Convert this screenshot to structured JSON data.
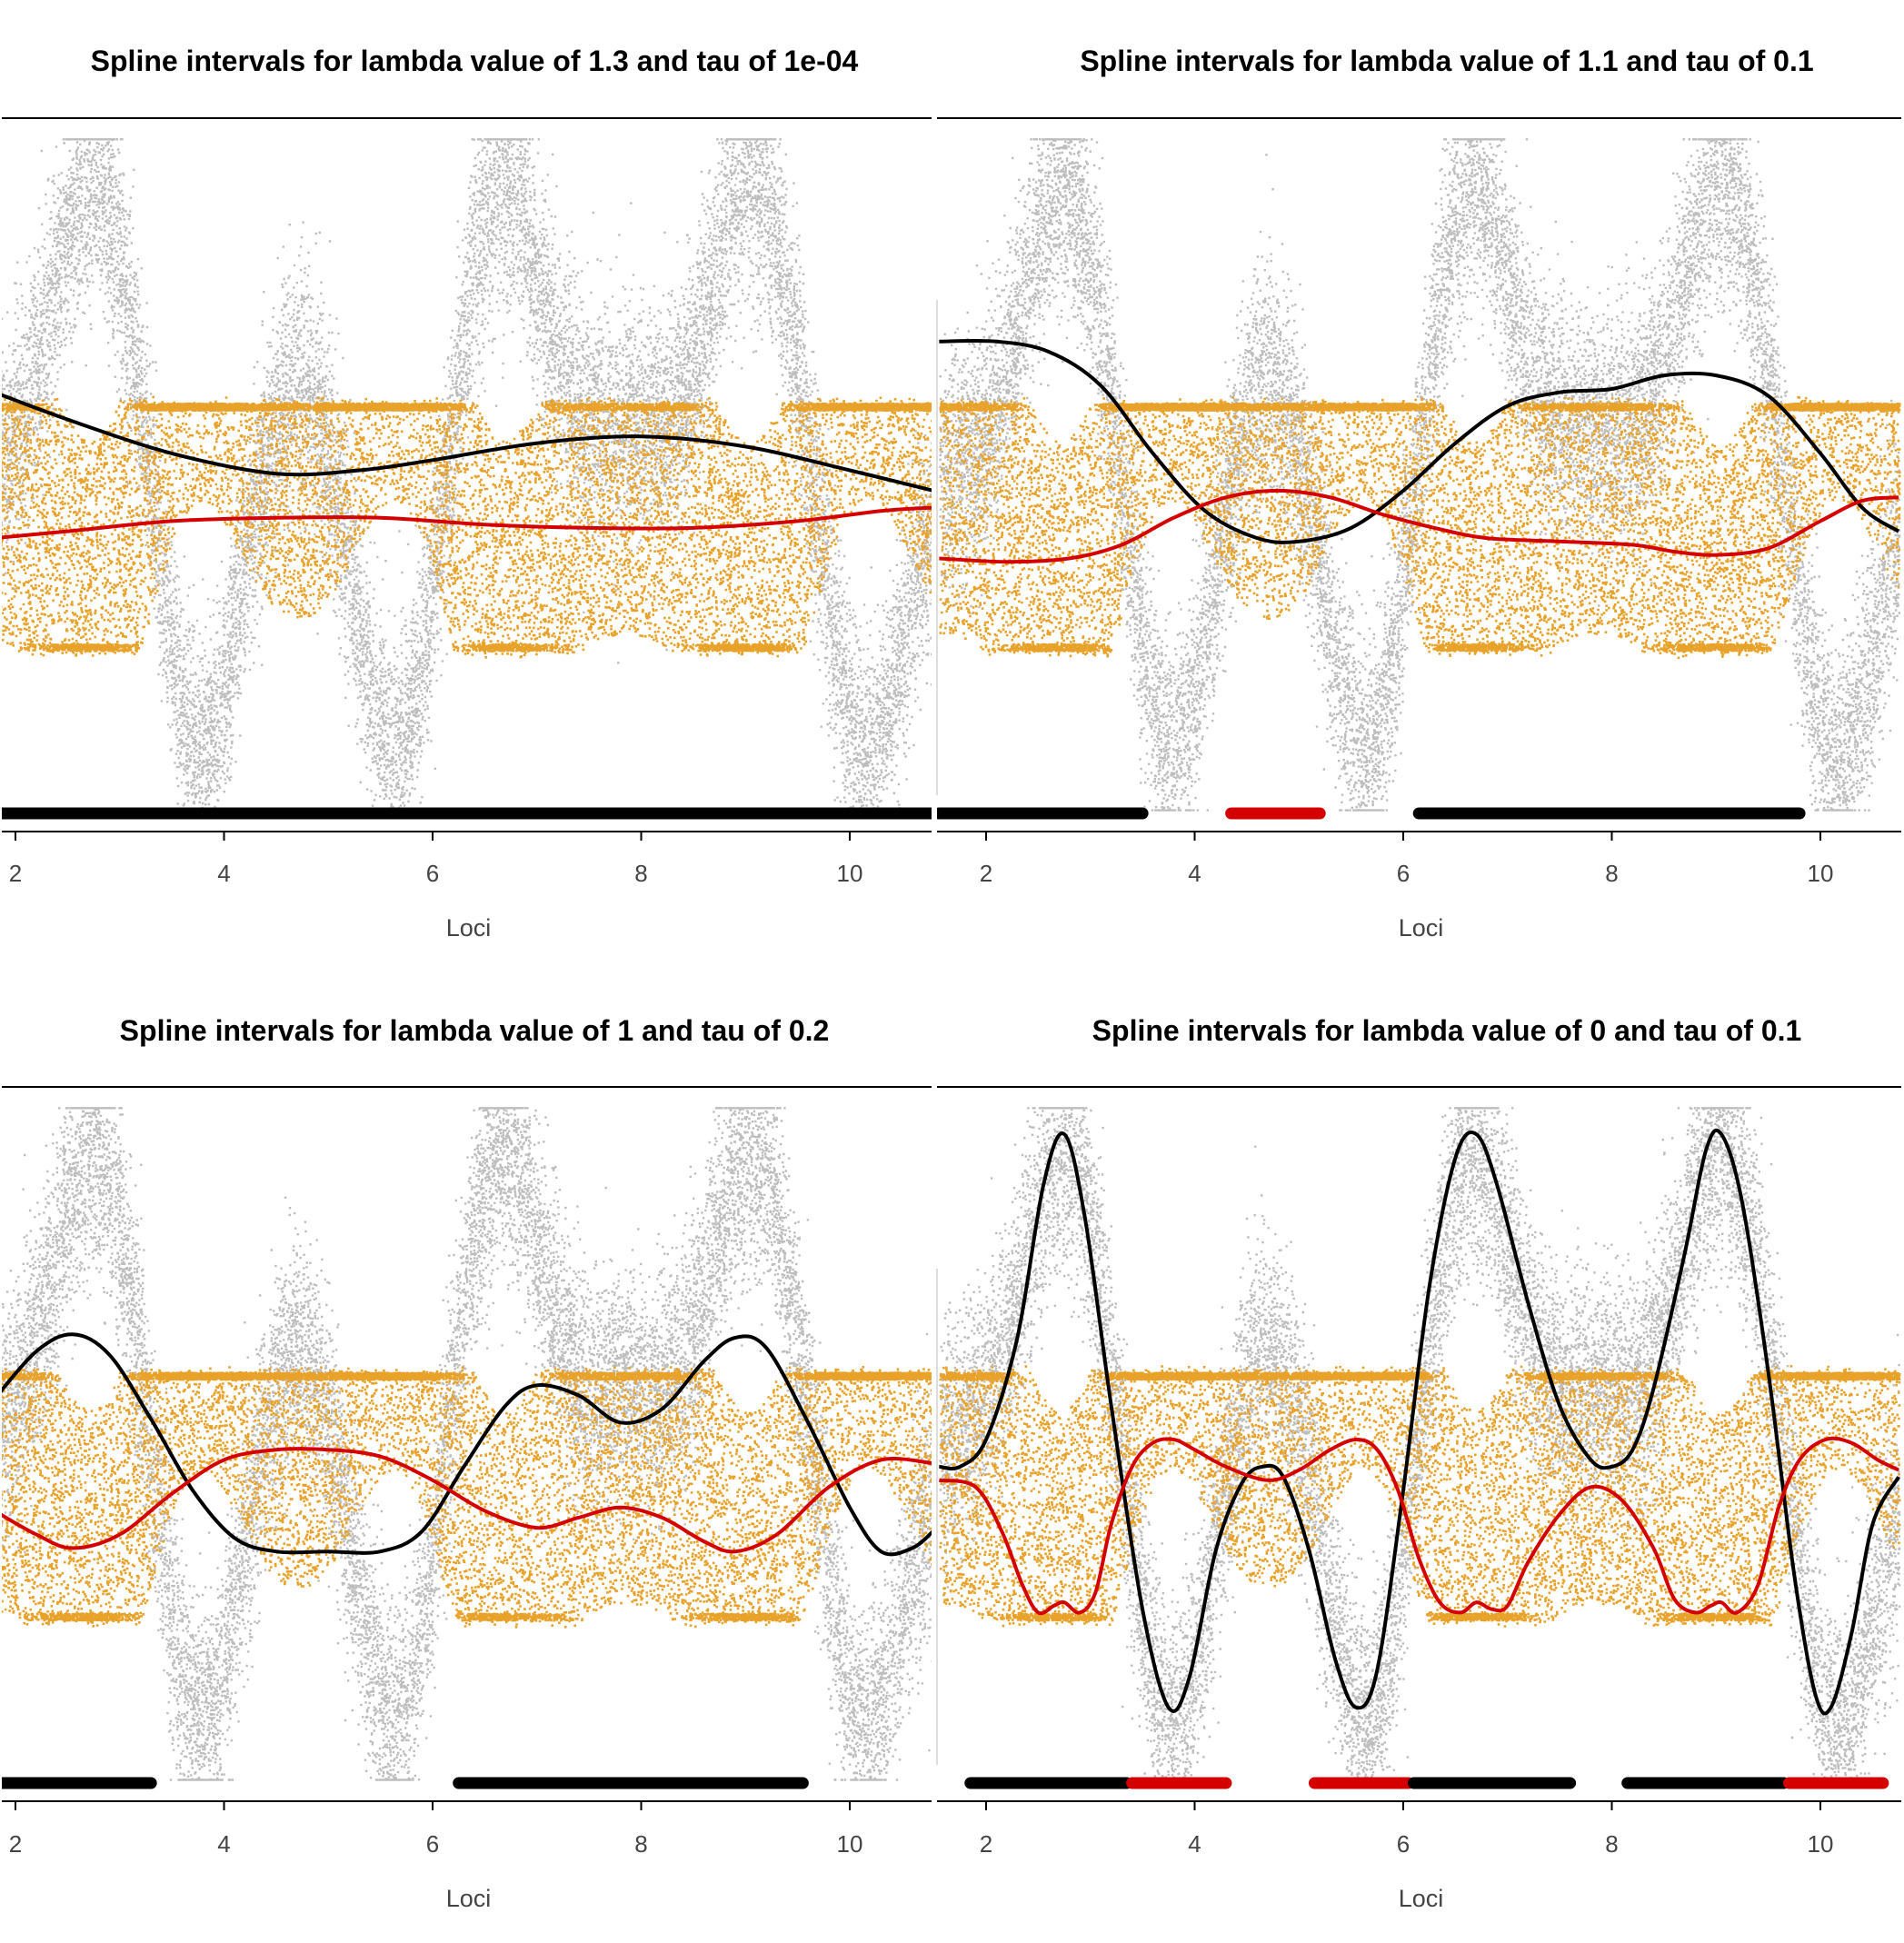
{
  "figure": {
    "layout": "2x2 grid of panels"
  },
  "colors": {
    "background_points": "#bdbdbd",
    "foreground_points": "#e8a22a",
    "upper_spline": "#000000",
    "lower_spline": "#d40000",
    "interval_black": "#000000",
    "interval_red": "#d40000"
  },
  "chart_data": [
    {
      "type": "scatter",
      "title": "Spline intervals for lambda value of 1.3 and tau of 1e-04",
      "xlabel": "Loci",
      "ylabel": "",
      "xlim": [
        1.8,
        10.8
      ],
      "ylim": [
        -1.15,
        1.15
      ],
      "x_ticks": [
        "2",
        "4",
        "6",
        "8",
        "10"
      ],
      "lines": [
        {
          "color": "black",
          "points": [
            [
              1.8,
              0.23
            ],
            [
              2.5,
              0.15
            ],
            [
              3.5,
              0.05
            ],
            [
              4.5,
              -0.01
            ],
            [
              5.3,
              0.0
            ],
            [
              6.0,
              0.03
            ],
            [
              7.0,
              0.08
            ],
            [
              8.0,
              0.1
            ],
            [
              9.0,
              0.07
            ],
            [
              10.0,
              0.0
            ],
            [
              10.8,
              -0.06
            ]
          ]
        },
        {
          "color": "red",
          "points": [
            [
              1.8,
              -0.2
            ],
            [
              2.5,
              -0.18
            ],
            [
              3.5,
              -0.15
            ],
            [
              4.5,
              -0.14
            ],
            [
              5.5,
              -0.14
            ],
            [
              6.5,
              -0.16
            ],
            [
              7.5,
              -0.17
            ],
            [
              8.5,
              -0.17
            ],
            [
              9.5,
              -0.15
            ],
            [
              10.3,
              -0.12
            ],
            [
              10.8,
              -0.11
            ]
          ]
        }
      ],
      "intervals": [
        {
          "color": "black",
          "from": 1.8,
          "to": 10.8
        }
      ]
    },
    {
      "type": "scatter",
      "title": "Spline intervals for lambda value of 1.1 and tau of 0.1",
      "xlabel": "Loci",
      "ylabel": "",
      "xlim": [
        1.55,
        10.75
      ],
      "ylim": [
        -1.15,
        1.15
      ],
      "x_ticks": [
        "2",
        "4",
        "6",
        "8",
        "10"
      ],
      "lines": [
        {
          "color": "black",
          "points": [
            [
              1.55,
              0.38
            ],
            [
              2.1,
              0.38
            ],
            [
              2.6,
              0.35
            ],
            [
              3.1,
              0.25
            ],
            [
              3.6,
              0.05
            ],
            [
              4.1,
              -0.12
            ],
            [
              4.6,
              -0.2
            ],
            [
              5.0,
              -0.21
            ],
            [
              5.5,
              -0.17
            ],
            [
              6.0,
              -0.06
            ],
            [
              6.5,
              0.08
            ],
            [
              7.0,
              0.19
            ],
            [
              7.5,
              0.23
            ],
            [
              8.0,
              0.24
            ],
            [
              8.5,
              0.28
            ],
            [
              9.0,
              0.28
            ],
            [
              9.5,
              0.22
            ],
            [
              10.0,
              0.05
            ],
            [
              10.4,
              -0.11
            ],
            [
              10.75,
              -0.18
            ]
          ]
        },
        {
          "color": "red",
          "points": [
            [
              1.55,
              -0.26
            ],
            [
              2.2,
              -0.27
            ],
            [
              2.8,
              -0.26
            ],
            [
              3.3,
              -0.22
            ],
            [
              3.8,
              -0.14
            ],
            [
              4.3,
              -0.08
            ],
            [
              4.8,
              -0.06
            ],
            [
              5.3,
              -0.08
            ],
            [
              5.8,
              -0.13
            ],
            [
              6.3,
              -0.17
            ],
            [
              6.8,
              -0.2
            ],
            [
              7.5,
              -0.21
            ],
            [
              8.2,
              -0.22
            ],
            [
              8.6,
              -0.24
            ],
            [
              9.0,
              -0.25
            ],
            [
              9.5,
              -0.23
            ],
            [
              10.0,
              -0.15
            ],
            [
              10.4,
              -0.09
            ],
            [
              10.75,
              -0.08
            ]
          ]
        }
      ],
      "intervals": [
        {
          "color": "black",
          "from": 1.55,
          "to": 3.5
        },
        {
          "color": "red",
          "from": 4.35,
          "to": 5.2
        },
        {
          "color": "black",
          "from": 6.15,
          "to": 9.8
        }
      ]
    },
    {
      "type": "scatter",
      "title": "Spline intervals for lambda value of 1 and tau of 0.2",
      "xlabel": "Loci",
      "ylabel": "",
      "xlim": [
        1.8,
        10.8
      ],
      "ylim": [
        -1.15,
        1.15
      ],
      "x_ticks": [
        "2",
        "4",
        "6",
        "8",
        "10"
      ],
      "lines": [
        {
          "color": "black",
          "points": [
            [
              1.8,
              0.12
            ],
            [
              2.2,
              0.26
            ],
            [
              2.55,
              0.31
            ],
            [
              2.9,
              0.25
            ],
            [
              3.3,
              0.06
            ],
            [
              3.7,
              -0.15
            ],
            [
              4.1,
              -0.29
            ],
            [
              4.5,
              -0.33
            ],
            [
              5.0,
              -0.33
            ],
            [
              5.5,
              -0.33
            ],
            [
              5.9,
              -0.27
            ],
            [
              6.3,
              -0.08
            ],
            [
              6.7,
              0.1
            ],
            [
              7.0,
              0.16
            ],
            [
              7.4,
              0.13
            ],
            [
              7.8,
              0.05
            ],
            [
              8.2,
              0.09
            ],
            [
              8.6,
              0.23
            ],
            [
              8.9,
              0.3
            ],
            [
              9.2,
              0.27
            ],
            [
              9.6,
              0.05
            ],
            [
              10.0,
              -0.2
            ],
            [
              10.3,
              -0.33
            ],
            [
              10.6,
              -0.32
            ],
            [
              10.8,
              -0.27
            ]
          ]
        },
        {
          "color": "red",
          "points": [
            [
              1.8,
              -0.21
            ],
            [
              2.2,
              -0.28
            ],
            [
              2.55,
              -0.32
            ],
            [
              3.0,
              -0.28
            ],
            [
              3.5,
              -0.16
            ],
            [
              4.0,
              -0.06
            ],
            [
              4.5,
              -0.03
            ],
            [
              5.0,
              -0.03
            ],
            [
              5.5,
              -0.05
            ],
            [
              6.0,
              -0.12
            ],
            [
              6.5,
              -0.21
            ],
            [
              7.0,
              -0.26
            ],
            [
              7.4,
              -0.23
            ],
            [
              7.8,
              -0.2
            ],
            [
              8.2,
              -0.23
            ],
            [
              8.6,
              -0.3
            ],
            [
              8.9,
              -0.33
            ],
            [
              9.3,
              -0.28
            ],
            [
              9.8,
              -0.14
            ],
            [
              10.3,
              -0.06
            ],
            [
              10.8,
              -0.07
            ]
          ]
        }
      ],
      "intervals": [
        {
          "color": "black",
          "from": 1.8,
          "to": 3.3
        },
        {
          "color": "black",
          "from": 6.25,
          "to": 9.55
        }
      ]
    },
    {
      "type": "scatter",
      "title": "Spline intervals for lambda value of 0 and tau of 0.1",
      "xlabel": "Loci",
      "ylabel": "",
      "xlim": [
        1.55,
        10.75
      ],
      "ylim": [
        -1.15,
        1.15
      ],
      "x_ticks": [
        "2",
        "4",
        "6",
        "8",
        "10"
      ],
      "lines": [
        {
          "color": "black",
          "points": [
            [
              1.55,
              -0.08
            ],
            [
              1.75,
              -0.08
            ],
            [
              2.0,
              -0.0
            ],
            [
              2.3,
              0.3
            ],
            [
              2.55,
              0.75
            ],
            [
              2.75,
              0.9
            ],
            [
              2.95,
              0.65
            ],
            [
              3.2,
              0.1
            ],
            [
              3.5,
              -0.5
            ],
            [
              3.75,
              -0.79
            ],
            [
              3.95,
              -0.7
            ],
            [
              4.2,
              -0.33
            ],
            [
              4.45,
              -0.13
            ],
            [
              4.65,
              -0.08
            ],
            [
              4.85,
              -0.11
            ],
            [
              5.1,
              -0.33
            ],
            [
              5.35,
              -0.65
            ],
            [
              5.55,
              -0.79
            ],
            [
              5.75,
              -0.68
            ],
            [
              6.0,
              -0.15
            ],
            [
              6.25,
              0.45
            ],
            [
              6.5,
              0.83
            ],
            [
              6.7,
              0.9
            ],
            [
              6.9,
              0.75
            ],
            [
              7.2,
              0.4
            ],
            [
              7.5,
              0.1
            ],
            [
              7.8,
              -0.06
            ],
            [
              8.0,
              -0.08
            ],
            [
              8.2,
              -0.03
            ],
            [
              8.4,
              0.15
            ],
            [
              8.7,
              0.55
            ],
            [
              8.9,
              0.85
            ],
            [
              9.05,
              0.9
            ],
            [
              9.25,
              0.7
            ],
            [
              9.5,
              0.2
            ],
            [
              9.75,
              -0.4
            ],
            [
              9.95,
              -0.75
            ],
            [
              10.1,
              -0.79
            ],
            [
              10.3,
              -0.57
            ],
            [
              10.5,
              -0.25
            ],
            [
              10.75,
              -0.11
            ]
          ]
        },
        {
          "color": "red",
          "points": [
            [
              1.55,
              -0.12
            ],
            [
              1.9,
              -0.14
            ],
            [
              2.15,
              -0.27
            ],
            [
              2.35,
              -0.43
            ],
            [
              2.5,
              -0.51
            ],
            [
              2.65,
              -0.49
            ],
            [
              2.75,
              -0.48
            ],
            [
              2.9,
              -0.51
            ],
            [
              3.05,
              -0.45
            ],
            [
              3.2,
              -0.25
            ],
            [
              3.4,
              -0.08
            ],
            [
              3.6,
              -0.01
            ],
            [
              3.8,
              -0.0
            ],
            [
              4.0,
              -0.03
            ],
            [
              4.3,
              -0.08
            ],
            [
              4.7,
              -0.12
            ],
            [
              5.0,
              -0.09
            ],
            [
              5.3,
              -0.03
            ],
            [
              5.55,
              -0.0
            ],
            [
              5.75,
              -0.03
            ],
            [
              5.95,
              -0.15
            ],
            [
              6.15,
              -0.35
            ],
            [
              6.35,
              -0.48
            ],
            [
              6.55,
              -0.51
            ],
            [
              6.7,
              -0.48
            ],
            [
              6.85,
              -0.5
            ],
            [
              7.0,
              -0.49
            ],
            [
              7.2,
              -0.36
            ],
            [
              7.5,
              -0.22
            ],
            [
              7.8,
              -0.14
            ],
            [
              8.1,
              -0.18
            ],
            [
              8.4,
              -0.32
            ],
            [
              8.6,
              -0.47
            ],
            [
              8.8,
              -0.51
            ],
            [
              8.95,
              -0.49
            ],
            [
              9.05,
              -0.48
            ],
            [
              9.2,
              -0.51
            ],
            [
              9.4,
              -0.43
            ],
            [
              9.6,
              -0.2
            ],
            [
              9.8,
              -0.06
            ],
            [
              10.05,
              -0.0
            ],
            [
              10.3,
              -0.01
            ],
            [
              10.55,
              -0.06
            ],
            [
              10.75,
              -0.09
            ]
          ]
        }
      ],
      "intervals": [
        {
          "color": "black",
          "from": 1.85,
          "to": 3.35
        },
        {
          "color": "red",
          "from": 3.4,
          "to": 4.3
        },
        {
          "color": "red",
          "from": 5.15,
          "to": 6.05
        },
        {
          "color": "black",
          "from": 6.1,
          "to": 7.6
        },
        {
          "color": "black",
          "from": 8.15,
          "to": 9.65
        },
        {
          "color": "red",
          "from": 9.7,
          "to": 10.6
        }
      ]
    }
  ]
}
